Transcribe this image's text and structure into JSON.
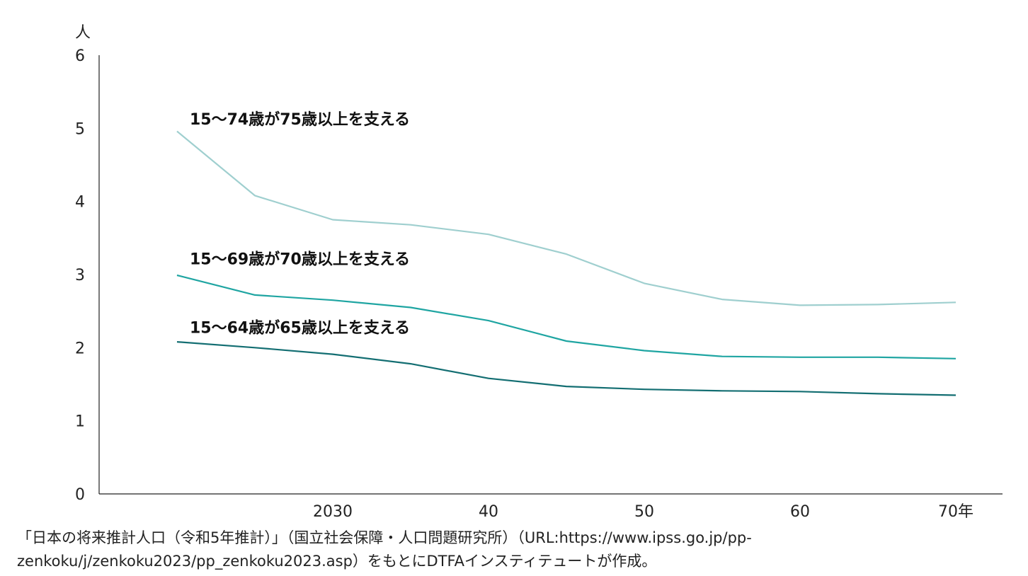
{
  "chart_data": {
    "type": "line",
    "y_unit": "人",
    "ylim": [
      0,
      6
    ],
    "y_ticks": [
      "0",
      "1",
      "2",
      "3",
      "4",
      "5",
      "6"
    ],
    "x_ticks": [
      {
        "year": 2030,
        "label": "2030"
      },
      {
        "year": 2040,
        "label": "40"
      },
      {
        "year": 2050,
        "label": "50"
      },
      {
        "year": 2060,
        "label": "60"
      },
      {
        "year": 2070,
        "label": "70年"
      }
    ],
    "xlim": [
      2015,
      2073
    ],
    "grid": false,
    "series": [
      {
        "name": "15〜74歳が75歳以上を支える",
        "color": "#9fcfcf",
        "label_year": 2020,
        "label_value": 5.05,
        "x": [
          2020,
          2025,
          2030,
          2035,
          2040,
          2045,
          2050,
          2055,
          2060,
          2065,
          2070
        ],
        "values": [
          4.96,
          4.08,
          3.75,
          3.68,
          3.55,
          3.28,
          2.88,
          2.66,
          2.58,
          2.59,
          2.62
        ]
      },
      {
        "name": "15〜69歳が70歳以上を支える",
        "color": "#1fa5a2",
        "label_year": 2020,
        "label_value": 3.14,
        "x": [
          2020,
          2025,
          2030,
          2035,
          2040,
          2045,
          2050,
          2055,
          2060,
          2065,
          2070
        ],
        "values": [
          2.99,
          2.72,
          2.65,
          2.55,
          2.37,
          2.09,
          1.96,
          1.88,
          1.87,
          1.87,
          1.85
        ]
      },
      {
        "name": "15〜64歳が65歳以上を支える",
        "color": "#136e72",
        "label_year": 2020,
        "label_value": 2.2,
        "x": [
          2020,
          2025,
          2030,
          2035,
          2040,
          2045,
          2050,
          2055,
          2060,
          2065,
          2070
        ],
        "values": [
          2.08,
          2.0,
          1.91,
          1.78,
          1.58,
          1.47,
          1.43,
          1.41,
          1.4,
          1.37,
          1.35
        ]
      }
    ]
  },
  "source_note": "「日本の将来推計人口（令和5年推計）」（国立社会保障・人口問題研究所）（URL:https://www.ipss.go.jp/pp-\nzenkoku/j/zenkoku2023/pp_zenkoku2023.asp）をもとにDTFAインスティテュートが作成。"
}
